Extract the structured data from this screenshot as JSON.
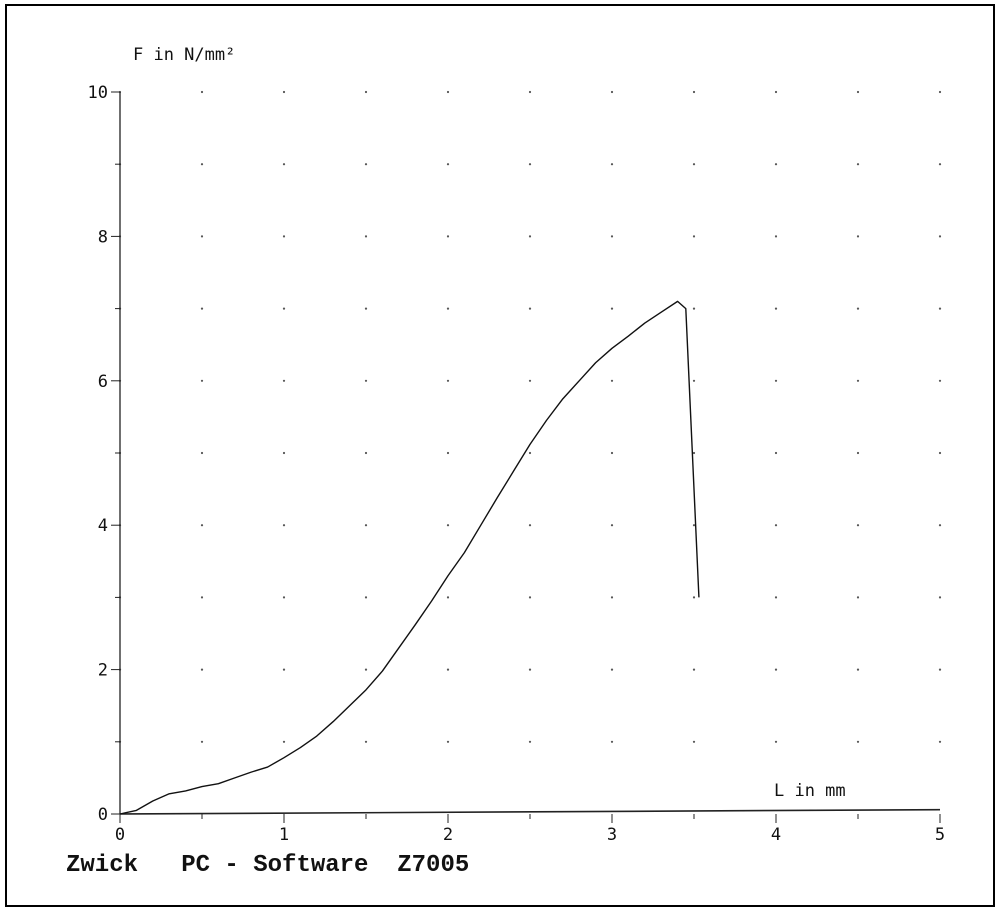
{
  "chart_data": {
    "type": "line",
    "xlabel": "L in mm",
    "ylabel": "F in N/mm²",
    "xlim": [
      0,
      5
    ],
    "ylim": [
      0,
      10
    ],
    "x_ticks": [
      "0",
      "1",
      "2",
      "3",
      "4",
      "5"
    ],
    "y_ticks": [
      "0",
      "2",
      "4",
      "6",
      "8",
      "10"
    ],
    "grid": "dotted",
    "series": [
      {
        "x": [
          0,
          0.1,
          0.2,
          0.3,
          0.4,
          0.5,
          0.6,
          0.7,
          0.8,
          0.9,
          1.0,
          1.1,
          1.2,
          1.3,
          1.4,
          1.5,
          1.6,
          1.7,
          1.8,
          1.9,
          2.0,
          2.1,
          2.2,
          2.3,
          2.4,
          2.5,
          2.6,
          2.7,
          2.8,
          2.9,
          3.0,
          3.1,
          3.2,
          3.3,
          3.4,
          3.45,
          3.53
        ],
        "y": [
          0,
          0.05,
          0.18,
          0.28,
          0.32,
          0.38,
          0.42,
          0.5,
          0.58,
          0.65,
          0.78,
          0.92,
          1.08,
          1.28,
          1.5,
          1.72,
          1.98,
          2.3,
          2.62,
          2.95,
          3.3,
          3.62,
          4.0,
          4.38,
          4.75,
          5.12,
          5.45,
          5.75,
          6.0,
          6.25,
          6.45,
          6.62,
          6.8,
          6.95,
          7.1,
          7.0,
          3.0
        ]
      }
    ]
  },
  "footer": {
    "text": "Zwick   PC - Software  Z7005"
  }
}
